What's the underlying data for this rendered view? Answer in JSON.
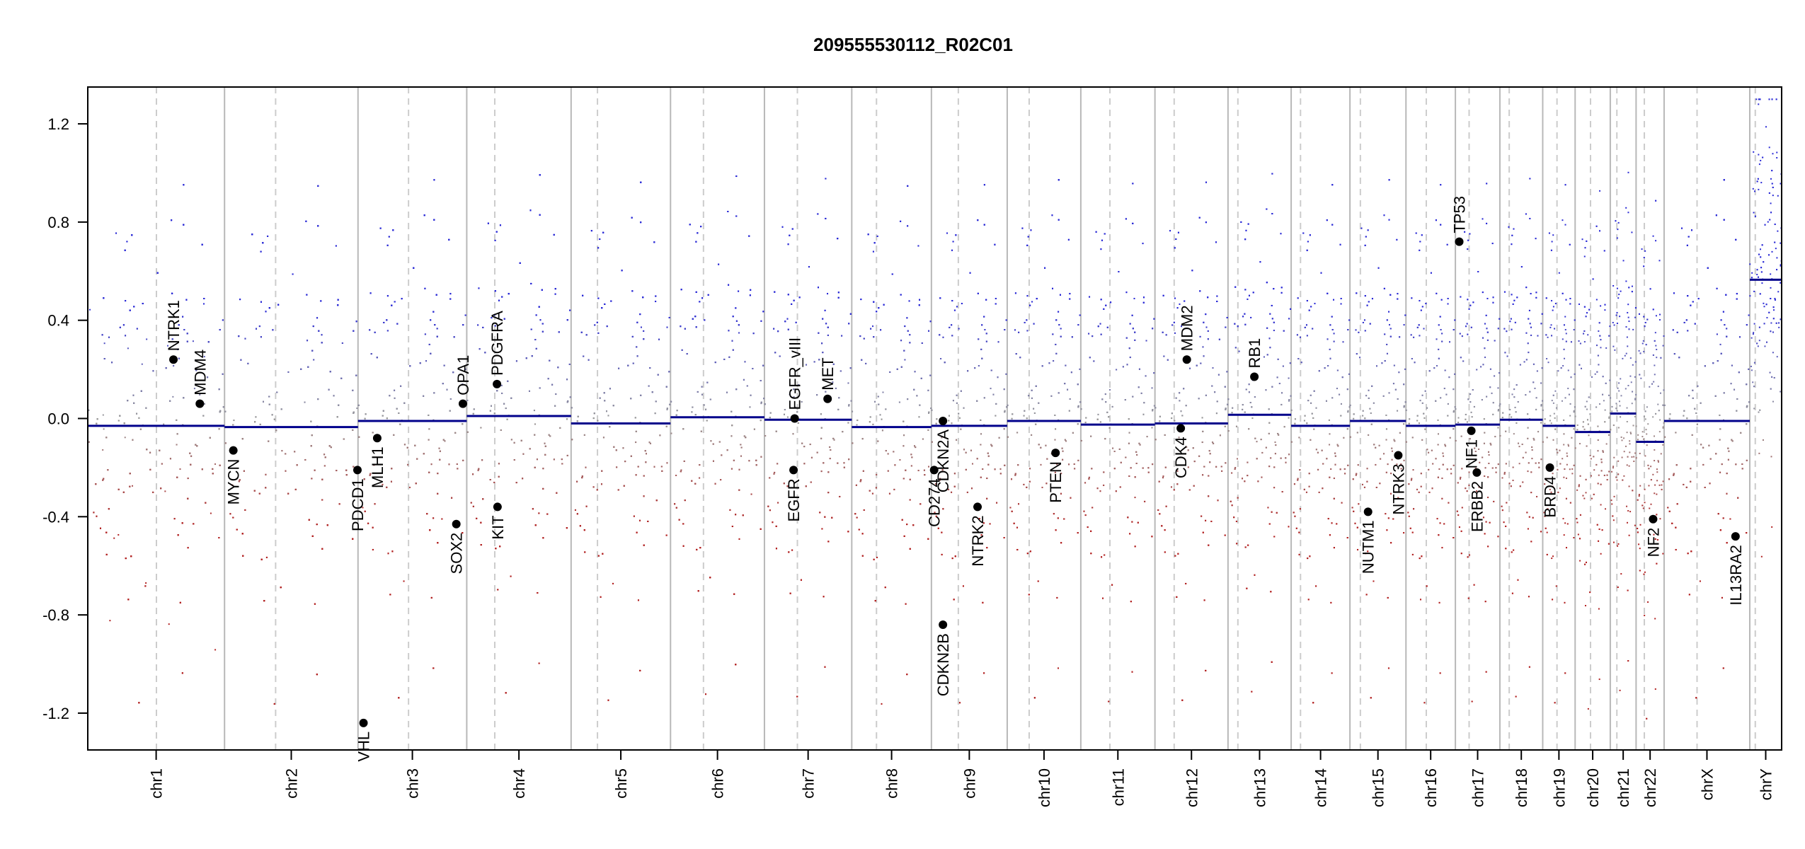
{
  "chart_data": {
    "type": "scatter",
    "title": "209555530112_R02C01",
    "xlabel": "",
    "ylabel": "",
    "ylim": [
      -1.35,
      1.35
    ],
    "y_ticks": [
      -1.2,
      -0.8,
      -0.4,
      0.0,
      0.4,
      0.8,
      1.2
    ],
    "y_tick_labels": [
      "-1.2",
      "-0.8",
      "-0.4",
      "0.0",
      "0.4",
      "0.8",
      "1.2"
    ],
    "grid": false,
    "colors": {
      "gain": "#2b2bd6",
      "loss": "#b22222",
      "neutral": "#9a9a9a",
      "segment": "#00008b",
      "boundary": "#b8b8b8",
      "centromere": "#cccccc",
      "axis": "#000000"
    },
    "chromosomes": [
      {
        "name": "chr1",
        "start": 0,
        "end": 249,
        "centromere": 125,
        "segment": -0.03
      },
      {
        "name": "chr2",
        "start": 249,
        "end": 492,
        "centromere": 342,
        "segment": -0.035
      },
      {
        "name": "chr3",
        "start": 492,
        "end": 690,
        "centromere": 584,
        "segment": -0.01
      },
      {
        "name": "chr4",
        "start": 690,
        "end": 880,
        "centromere": 741,
        "segment": 0.01
      },
      {
        "name": "chr5",
        "start": 880,
        "end": 1061,
        "centromere": 928,
        "segment": -0.02
      },
      {
        "name": "chr6",
        "start": 1061,
        "end": 1232,
        "centromere": 1121,
        "segment": 0.005
      },
      {
        "name": "chr7",
        "start": 1232,
        "end": 1391,
        "centromere": 1292,
        "segment": -0.005
      },
      {
        "name": "chr8",
        "start": 1391,
        "end": 1536,
        "centromere": 1436,
        "segment": -0.035
      },
      {
        "name": "chr9",
        "start": 1536,
        "end": 1674,
        "centromere": 1585,
        "segment": -0.03
      },
      {
        "name": "chr10",
        "start": 1674,
        "end": 1808,
        "centromere": 1714,
        "segment": -0.01
      },
      {
        "name": "chr11",
        "start": 1808,
        "end": 1943,
        "centromere": 1861,
        "segment": -0.025
      },
      {
        "name": "chr12",
        "start": 1943,
        "end": 2076,
        "centromere": 1978,
        "segment": -0.02
      },
      {
        "name": "chr13",
        "start": 2076,
        "end": 2191,
        "centromere": 2094,
        "segment": 0.015
      },
      {
        "name": "chr14",
        "start": 2191,
        "end": 2298,
        "centromere": 2208,
        "segment": -0.03
      },
      {
        "name": "chr15",
        "start": 2298,
        "end": 2400,
        "centromere": 2317,
        "segment": -0.01
      },
      {
        "name": "chr16",
        "start": 2400,
        "end": 2490,
        "centromere": 2437,
        "segment": -0.03
      },
      {
        "name": "chr17",
        "start": 2490,
        "end": 2571,
        "centromere": 2515,
        "segment": -0.025
      },
      {
        "name": "chr18",
        "start": 2571,
        "end": 2649,
        "centromere": 2588,
        "segment": -0.005
      },
      {
        "name": "chr19",
        "start": 2649,
        "end": 2708,
        "centromere": 2675,
        "segment": -0.03
      },
      {
        "name": "chr20",
        "start": 2708,
        "end": 2772,
        "centromere": 2736,
        "segment": -0.055
      },
      {
        "name": "chr21",
        "start": 2772,
        "end": 2819,
        "centromere": 2784,
        "segment": 0.02
      },
      {
        "name": "chr22",
        "start": 2819,
        "end": 2870,
        "centromere": 2834,
        "segment": -0.095
      },
      {
        "name": "chrX",
        "start": 2870,
        "end": 3026,
        "centromere": 2930,
        "segment": -0.01
      },
      {
        "name": "chrY",
        "start": 3026,
        "end": 3084,
        "centromere": 3036,
        "segment": 0.565
      }
    ],
    "genes": [
      {
        "name": "NTRK1",
        "x": 156,
        "y": 0.24
      },
      {
        "name": "MDM4",
        "x": 204,
        "y": 0.06
      },
      {
        "name": "MYCN",
        "x": 265,
        "y": -0.13
      },
      {
        "name": "PDCD1",
        "x": 491,
        "y": -0.21
      },
      {
        "name": "VHL",
        "x": 502,
        "y": -1.24
      },
      {
        "name": "MLH1",
        "x": 527,
        "y": -0.08
      },
      {
        "name": "SOX2",
        "x": 671,
        "y": -0.43
      },
      {
        "name": "OPA1",
        "x": 683,
        "y": 0.06
      },
      {
        "name": "PDGFRA",
        "x": 745,
        "y": 0.14
      },
      {
        "name": "KIT",
        "x": 746,
        "y": -0.36
      },
      {
        "name": "EGFR",
        "x": 1285,
        "y": -0.21
      },
      {
        "name": "EGFR_vIII",
        "x": 1287,
        "y": 0.0
      },
      {
        "name": "MET",
        "x": 1347,
        "y": 0.08
      },
      {
        "name": "CD274",
        "x": 1541,
        "y": -0.21
      },
      {
        "name": "CDKN2A",
        "x": 1557,
        "y": -0.01
      },
      {
        "name": "CDKN2B",
        "x": 1557,
        "y": -0.84
      },
      {
        "name": "NTRK2",
        "x": 1620,
        "y": -0.36
      },
      {
        "name": "PTEN",
        "x": 1762,
        "y": -0.14
      },
      {
        "name": "CDK4",
        "x": 1990,
        "y": -0.04
      },
      {
        "name": "MDM2",
        "x": 2001,
        "y": 0.24
      },
      {
        "name": "RB1",
        "x": 2124,
        "y": 0.17
      },
      {
        "name": "NUTM1",
        "x": 2331,
        "y": -0.38
      },
      {
        "name": "NTRK3",
        "x": 2386,
        "y": -0.15
      },
      {
        "name": "TP53",
        "x": 2497,
        "y": 0.72
      },
      {
        "name": "NF1",
        "x": 2519,
        "y": -0.05
      },
      {
        "name": "ERBB2",
        "x": 2529,
        "y": -0.22
      },
      {
        "name": "BRD4",
        "x": 2662,
        "y": -0.2
      },
      {
        "name": "NF2",
        "x": 2850,
        "y": -0.41
      },
      {
        "name": "IL13RA2",
        "x": 3000,
        "y": -0.48
      }
    ]
  }
}
